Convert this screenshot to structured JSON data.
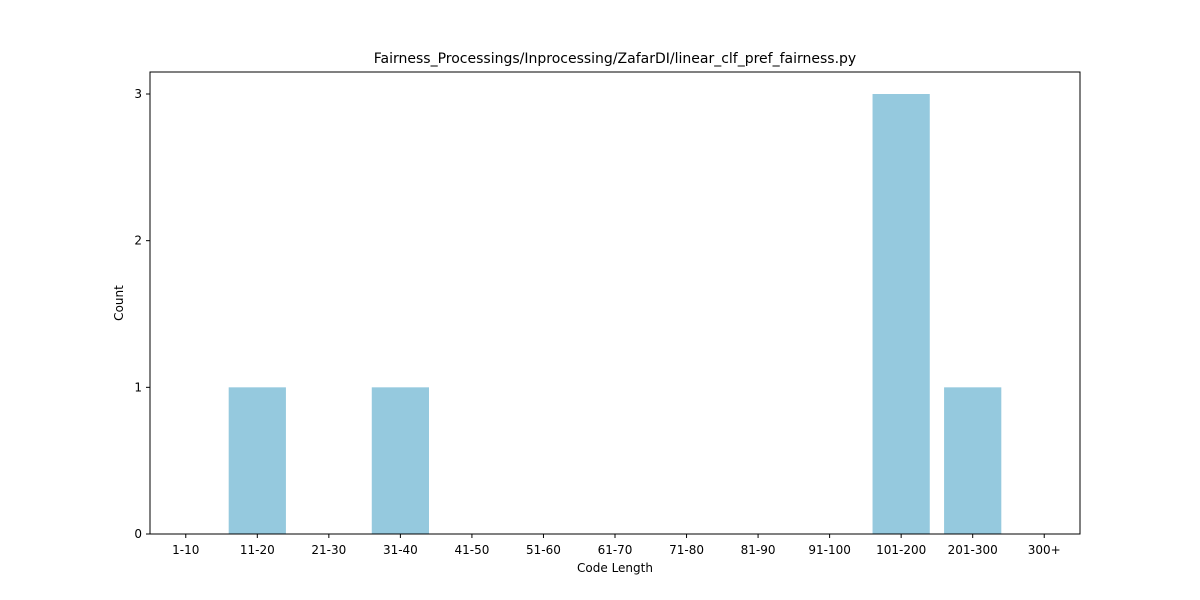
{
  "chart_data": {
    "type": "bar",
    "title": "Fairness_Processings/Inprocessing/ZafarDI/linear_clf_pref_fairness.py",
    "xlabel": "Code Length",
    "ylabel": "Count",
    "categories": [
      "1-10",
      "11-20",
      "21-30",
      "31-40",
      "41-50",
      "51-60",
      "61-70",
      "71-80",
      "81-90",
      "91-100",
      "101-200",
      "201-300",
      "300+"
    ],
    "values": [
      0,
      1,
      0,
      1,
      0,
      0,
      0,
      0,
      0,
      0,
      3,
      1,
      0
    ],
    "yticks": [
      0,
      1,
      2,
      3
    ],
    "ylim": [
      0,
      3.15
    ],
    "bar_color": "#95c9de",
    "grid": false,
    "legend": "none"
  }
}
